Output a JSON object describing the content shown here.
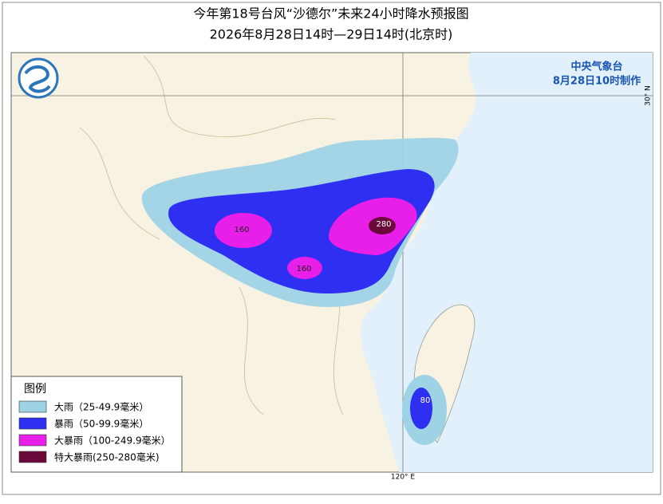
{
  "header": {
    "title": "今年第18号台风“沙德尔”未来24小时降水预报图",
    "subtitle": "2026年8月28日14时—29日14时(北京时)"
  },
  "issuer": {
    "agency": "中央气象台",
    "issued": "8月28日10时制作"
  },
  "grid": {
    "latitude_label": "30° N",
    "longitude_label": "120° E"
  },
  "legend": {
    "title": "图例",
    "items": [
      {
        "label": "大雨（25-49.9毫米）",
        "color": "#9ed3e6"
      },
      {
        "label": "暴雨（50-99.9毫米）",
        "color": "#2e2ff0"
      },
      {
        "label": "大暴雨（100-249.9毫米）",
        "color": "#e81fe8"
      },
      {
        "label": "特大暴雨(250-280毫米)",
        "color": "#6b0a3a"
      }
    ]
  },
  "rain_labels": [
    "160",
    "160",
    "280",
    "80"
  ]
}
